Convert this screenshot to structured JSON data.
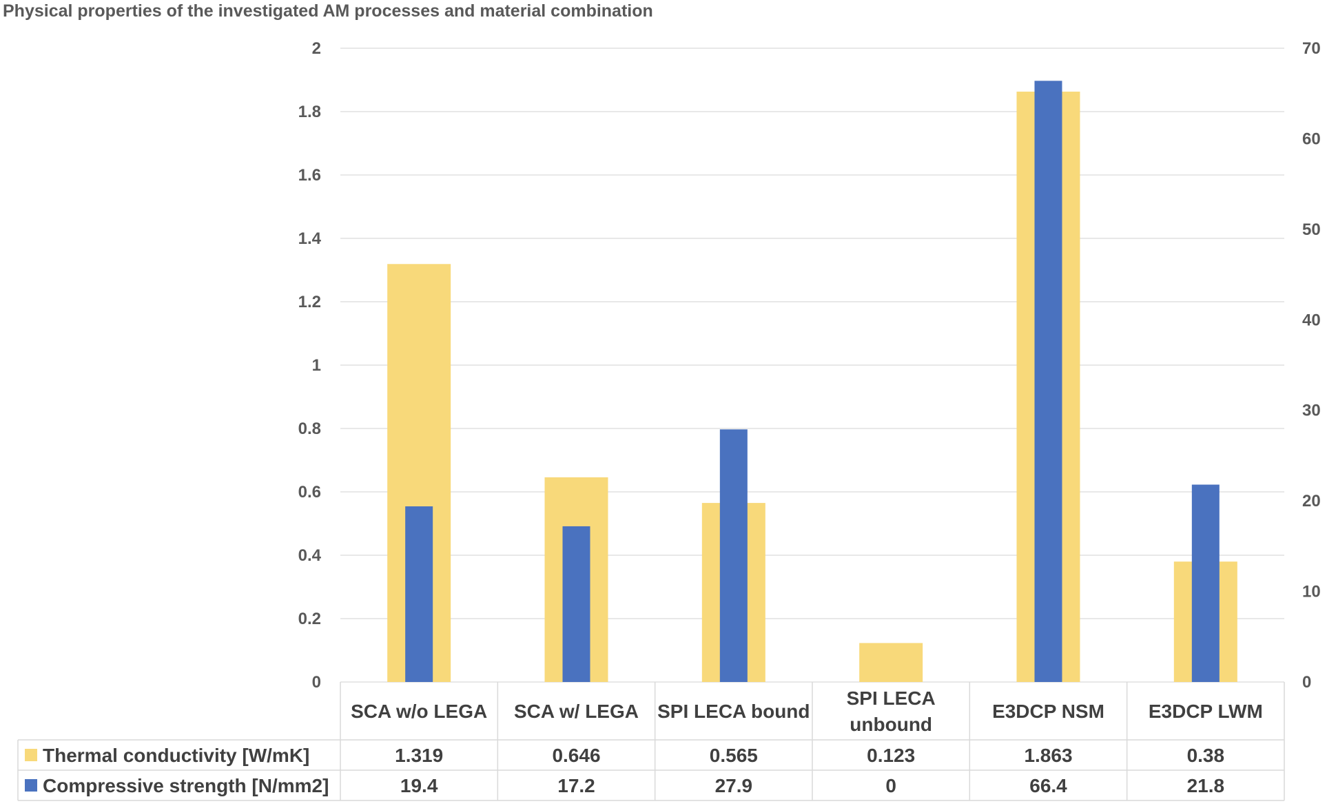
{
  "chart_data": {
    "type": "bar",
    "title": "Physical properties of the investigated AM processes and material combination",
    "categories": [
      [
        "SCA w/o LEGA"
      ],
      [
        "SCA w/ LEGA"
      ],
      [
        "SPI LECA bound"
      ],
      [
        "SPI LECA",
        "unbound"
      ],
      [
        "E3DCP NSM"
      ],
      [
        "E3DCP LWM"
      ]
    ],
    "series": [
      {
        "name": "Thermal conductivity [W/mK]",
        "axis": "left",
        "color": "#F8D97A",
        "values": [
          1.319,
          0.646,
          0.565,
          0.123,
          1.863,
          0.38
        ],
        "labels": [
          "1.319",
          "0.646",
          "0.565",
          "0.123",
          "1.863",
          "0.38"
        ]
      },
      {
        "name": "Compressive strength [N/mm2]",
        "axis": "right",
        "color": "#4A72BF",
        "values": [
          19.4,
          17.2,
          27.9,
          0,
          66.4,
          21.8
        ],
        "labels": [
          "19.4",
          "17.2",
          "27.9",
          "0",
          "66.4",
          "21.8"
        ]
      }
    ],
    "y_left": {
      "min": 0,
      "max": 2,
      "ticks": [
        "0",
        "0.2",
        "0.4",
        "0.6",
        "0.8",
        "1",
        "1.2",
        "1.4",
        "1.6",
        "1.8",
        "2"
      ]
    },
    "y_right": {
      "min": 0,
      "max": 70,
      "ticks": [
        "0",
        "10",
        "20",
        "30",
        "40",
        "50",
        "60",
        "70"
      ]
    },
    "grid": true,
    "legend": "data-table-below"
  }
}
